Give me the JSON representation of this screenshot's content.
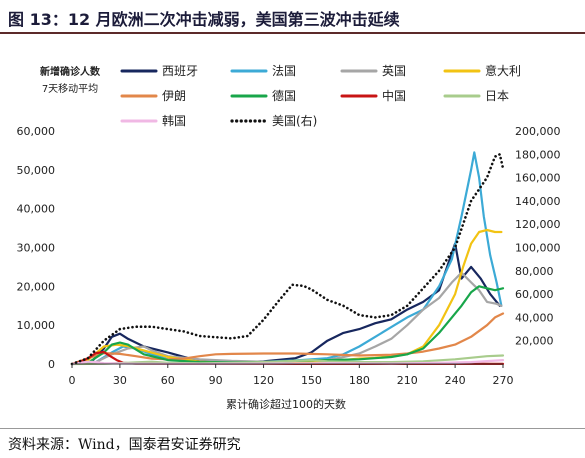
{
  "figure": {
    "title": "图 13：12 月欧洲二次冲击减弱，美国第三波冲击延续",
    "source": "资料来源：Wind，国泰君安证券研究"
  },
  "chart_data": {
    "type": "line",
    "ylabel": "新增确诊人数",
    "ylabel2": "7天移动平均",
    "xlabel": "累计确诊超过100的天数",
    "xlim": [
      0,
      270
    ],
    "ylim": [
      0,
      60000
    ],
    "y2lim": [
      0,
      200000
    ],
    "xticks": [
      0,
      30,
      60,
      90,
      120,
      150,
      180,
      210,
      240,
      270
    ],
    "yticks": [
      0,
      10000,
      20000,
      30000,
      40000,
      50000,
      60000
    ],
    "y2ticks": [
      20000,
      40000,
      60000,
      80000,
      100000,
      120000,
      140000,
      160000,
      180000,
      200000
    ],
    "ytick_labels": [
      "0",
      "10,000",
      "20,000",
      "30,000",
      "40,000",
      "50,000",
      "60,000"
    ],
    "y2tick_labels": [
      "20,000",
      "40,000",
      "60,000",
      "80,000",
      "100,000",
      "120,000",
      "140,000",
      "160,000",
      "180,000",
      "200,000"
    ],
    "legend_position": "top, four columns",
    "series": [
      {
        "name": "西班牙",
        "color": "#17275e",
        "style": "solid",
        "axis": "left",
        "points": [
          [
            0,
            0
          ],
          [
            12,
            500
          ],
          [
            20,
            4000
          ],
          [
            25,
            7000
          ],
          [
            30,
            7800
          ],
          [
            35,
            6500
          ],
          [
            45,
            4500
          ],
          [
            60,
            3000
          ],
          [
            80,
            700
          ],
          [
            100,
            300
          ],
          [
            120,
            700
          ],
          [
            140,
            1500
          ],
          [
            150,
            3000
          ],
          [
            160,
            6000
          ],
          [
            170,
            8000
          ],
          [
            180,
            9000
          ],
          [
            190,
            10500
          ],
          [
            200,
            11500
          ],
          [
            210,
            14000
          ],
          [
            220,
            16000
          ],
          [
            230,
            19000
          ],
          [
            235,
            25000
          ],
          [
            240,
            31000
          ],
          [
            244,
            22000
          ],
          [
            250,
            25000
          ],
          [
            256,
            22000
          ],
          [
            262,
            18000
          ],
          [
            268,
            15000
          ]
        ]
      },
      {
        "name": "法国",
        "color": "#3caad6",
        "style": "solid",
        "axis": "left",
        "points": [
          [
            0,
            0
          ],
          [
            15,
            500
          ],
          [
            25,
            3000
          ],
          [
            32,
            4500
          ],
          [
            40,
            4000
          ],
          [
            50,
            2500
          ],
          [
            60,
            1200
          ],
          [
            80,
            600
          ],
          [
            100,
            500
          ],
          [
            120,
            600
          ],
          [
            140,
            900
          ],
          [
            160,
            1500
          ],
          [
            170,
            2500
          ],
          [
            180,
            4500
          ],
          [
            190,
            7000
          ],
          [
            200,
            9500
          ],
          [
            210,
            12000
          ],
          [
            220,
            14000
          ],
          [
            230,
            20000
          ],
          [
            238,
            27000
          ],
          [
            244,
            38000
          ],
          [
            248,
            46000
          ],
          [
            250,
            50000
          ],
          [
            252,
            54500
          ],
          [
            255,
            48000
          ],
          [
            258,
            38000
          ],
          [
            262,
            28000
          ],
          [
            266,
            21000
          ],
          [
            269,
            15000
          ]
        ]
      },
      {
        "name": "英国",
        "color": "#a6a6a6",
        "style": "solid",
        "axis": "left",
        "points": [
          [
            0,
            0
          ],
          [
            15,
            500
          ],
          [
            25,
            2500
          ],
          [
            35,
            4000
          ],
          [
            45,
            4500
          ],
          [
            50,
            3500
          ],
          [
            60,
            2000
          ],
          [
            80,
            1200
          ],
          [
            100,
            800
          ],
          [
            120,
            600
          ],
          [
            140,
            700
          ],
          [
            160,
            1000
          ],
          [
            170,
            1800
          ],
          [
            180,
            2700
          ],
          [
            190,
            4500
          ],
          [
            200,
            6500
          ],
          [
            210,
            10000
          ],
          [
            220,
            14000
          ],
          [
            230,
            17000
          ],
          [
            238,
            21000
          ],
          [
            244,
            23500
          ],
          [
            250,
            21000
          ],
          [
            255,
            19000
          ],
          [
            260,
            16000
          ],
          [
            266,
            15500
          ],
          [
            269,
            15000
          ]
        ]
      },
      {
        "name": "意大利",
        "color": "#f2c313",
        "style": "solid",
        "axis": "left",
        "points": [
          [
            0,
            0
          ],
          [
            10,
            1000
          ],
          [
            20,
            4500
          ],
          [
            28,
            5000
          ],
          [
            35,
            4600
          ],
          [
            45,
            3500
          ],
          [
            60,
            1800
          ],
          [
            80,
            600
          ],
          [
            100,
            250
          ],
          [
            120,
            200
          ],
          [
            140,
            250
          ],
          [
            160,
            700
          ],
          [
            180,
            1400
          ],
          [
            190,
            1600
          ],
          [
            200,
            2000
          ],
          [
            210,
            2500
          ],
          [
            220,
            4500
          ],
          [
            230,
            10000
          ],
          [
            240,
            18000
          ],
          [
            245,
            25000
          ],
          [
            250,
            31000
          ],
          [
            255,
            34000
          ],
          [
            260,
            34500
          ],
          [
            265,
            34000
          ],
          [
            269,
            34000
          ]
        ]
      },
      {
        "name": "伊朗",
        "color": "#e2874a",
        "style": "solid",
        "axis": "left",
        "points": [
          [
            0,
            0
          ],
          [
            10,
            1500
          ],
          [
            20,
            2800
          ],
          [
            30,
            2600
          ],
          [
            40,
            2000
          ],
          [
            50,
            1400
          ],
          [
            60,
            1200
          ],
          [
            70,
            1400
          ],
          [
            80,
            2000
          ],
          [
            90,
            2500
          ],
          [
            100,
            2600
          ],
          [
            120,
            2700
          ],
          [
            140,
            2700
          ],
          [
            160,
            2500
          ],
          [
            180,
            2200
          ],
          [
            190,
            2300
          ],
          [
            200,
            2400
          ],
          [
            210,
            2700
          ],
          [
            220,
            3200
          ],
          [
            230,
            4000
          ],
          [
            240,
            5000
          ],
          [
            250,
            7000
          ],
          [
            260,
            10000
          ],
          [
            265,
            12000
          ],
          [
            270,
            13000
          ]
        ]
      },
      {
        "name": "德国",
        "color": "#18a64a",
        "style": "solid",
        "axis": "left",
        "points": [
          [
            0,
            0
          ],
          [
            10,
            300
          ],
          [
            20,
            3000
          ],
          [
            25,
            5000
          ],
          [
            30,
            5500
          ],
          [
            35,
            5000
          ],
          [
            45,
            2500
          ],
          [
            60,
            1000
          ],
          [
            80,
            500
          ],
          [
            100,
            400
          ],
          [
            120,
            500
          ],
          [
            140,
            800
          ],
          [
            160,
            1000
          ],
          [
            180,
            1200
          ],
          [
            200,
            1800
          ],
          [
            210,
            2500
          ],
          [
            220,
            4000
          ],
          [
            230,
            8000
          ],
          [
            238,
            12000
          ],
          [
            244,
            15000
          ],
          [
            250,
            18500
          ],
          [
            255,
            20000
          ],
          [
            260,
            19500
          ],
          [
            265,
            19000
          ],
          [
            270,
            19500
          ]
        ]
      },
      {
        "name": "中国",
        "color": "#c81414",
        "style": "solid",
        "axis": "left",
        "points": [
          [
            0,
            0
          ],
          [
            5,
            500
          ],
          [
            10,
            1500
          ],
          [
            15,
            2800
          ],
          [
            20,
            3100
          ],
          [
            24,
            2000
          ],
          [
            28,
            1000
          ],
          [
            32,
            300
          ],
          [
            40,
            80
          ],
          [
            60,
            50
          ],
          [
            100,
            30
          ],
          [
            150,
            30
          ],
          [
            200,
            30
          ],
          [
            270,
            30
          ]
        ]
      },
      {
        "name": "日本",
        "color": "#a8cc8c",
        "style": "solid",
        "axis": "left",
        "points": [
          [
            0,
            0
          ],
          [
            20,
            50
          ],
          [
            40,
            400
          ],
          [
            50,
            600
          ],
          [
            60,
            300
          ],
          [
            80,
            150
          ],
          [
            100,
            300
          ],
          [
            120,
            500
          ],
          [
            140,
            800
          ],
          [
            150,
            1000
          ],
          [
            160,
            700
          ],
          [
            180,
            500
          ],
          [
            200,
            500
          ],
          [
            220,
            700
          ],
          [
            240,
            1200
          ],
          [
            260,
            2000
          ],
          [
            270,
            2200
          ]
        ]
      },
      {
        "name": "韩国",
        "color": "#f0b8e4",
        "style": "solid",
        "axis": "left",
        "points": [
          [
            0,
            0
          ],
          [
            5,
            300
          ],
          [
            10,
            600
          ],
          [
            15,
            500
          ],
          [
            20,
            200
          ],
          [
            40,
            80
          ],
          [
            80,
            50
          ],
          [
            120,
            100
          ],
          [
            160,
            200
          ],
          [
            200,
            100
          ],
          [
            230,
            300
          ],
          [
            250,
            500
          ],
          [
            270,
            1000
          ]
        ]
      },
      {
        "name": "美国(右)",
        "color": "#111111",
        "style": "dotted",
        "axis": "right",
        "points": [
          [
            0,
            0
          ],
          [
            10,
            5000
          ],
          [
            20,
            20000
          ],
          [
            30,
            30000
          ],
          [
            40,
            32000
          ],
          [
            50,
            32000
          ],
          [
            60,
            30000
          ],
          [
            70,
            28000
          ],
          [
            80,
            24000
          ],
          [
            90,
            23000
          ],
          [
            100,
            22000
          ],
          [
            110,
            24000
          ],
          [
            120,
            38000
          ],
          [
            130,
            55000
          ],
          [
            138,
            68000
          ],
          [
            145,
            67000
          ],
          [
            150,
            64000
          ],
          [
            160,
            55000
          ],
          [
            170,
            50000
          ],
          [
            180,
            42000
          ],
          [
            190,
            40000
          ],
          [
            200,
            42000
          ],
          [
            210,
            50000
          ],
          [
            220,
            65000
          ],
          [
            230,
            80000
          ],
          [
            240,
            100000
          ],
          [
            245,
            120000
          ],
          [
            250,
            140000
          ],
          [
            255,
            150000
          ],
          [
            260,
            160000
          ],
          [
            265,
            178000
          ],
          [
            268,
            180000
          ],
          [
            270,
            168000
          ]
        ]
      }
    ]
  }
}
